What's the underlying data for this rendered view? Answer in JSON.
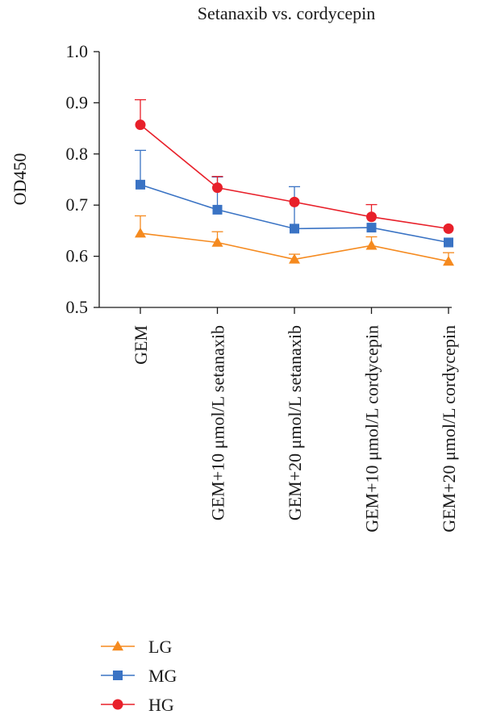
{
  "chart_data": {
    "type": "line",
    "title": "Setanaxib vs. cordycepin",
    "ylabel": "OD450",
    "xlabel": "",
    "ylim": [
      0.5,
      1.0
    ],
    "yticks": [
      "1.0",
      "0.9",
      "0.8",
      "0.7",
      "0.6",
      "0.5"
    ],
    "categories": [
      "GEM",
      "GEM+10 μmol/L setanaxib",
      "GEM+20 μmol/L setanaxib",
      "GEM+10 μmol/L cordycepin",
      "GEM+20 μmol/L cordycepin"
    ],
    "series": [
      {
        "name": "LG",
        "color": "#f58a1f",
        "marker": "triangle",
        "values": [
          0.645,
          0.627,
          0.594,
          0.621,
          0.59
        ],
        "error": [
          0.034,
          0.021,
          0.01,
          0.017,
          0.017
        ]
      },
      {
        "name": "MG",
        "color": "#3a73c4",
        "marker": "square",
        "values": [
          0.74,
          0.691,
          0.654,
          0.656,
          0.627
        ],
        "error": [
          0.067,
          0.064,
          0.082,
          0.0,
          0.0
        ]
      },
      {
        "name": "HG",
        "color": "#e8202a",
        "marker": "circle",
        "values": [
          0.857,
          0.734,
          0.706,
          0.677,
          0.654
        ],
        "error": [
          0.049,
          0.022,
          0.0,
          0.024,
          0.0
        ]
      }
    ],
    "legend_position": "bottom-left",
    "grid": false
  }
}
